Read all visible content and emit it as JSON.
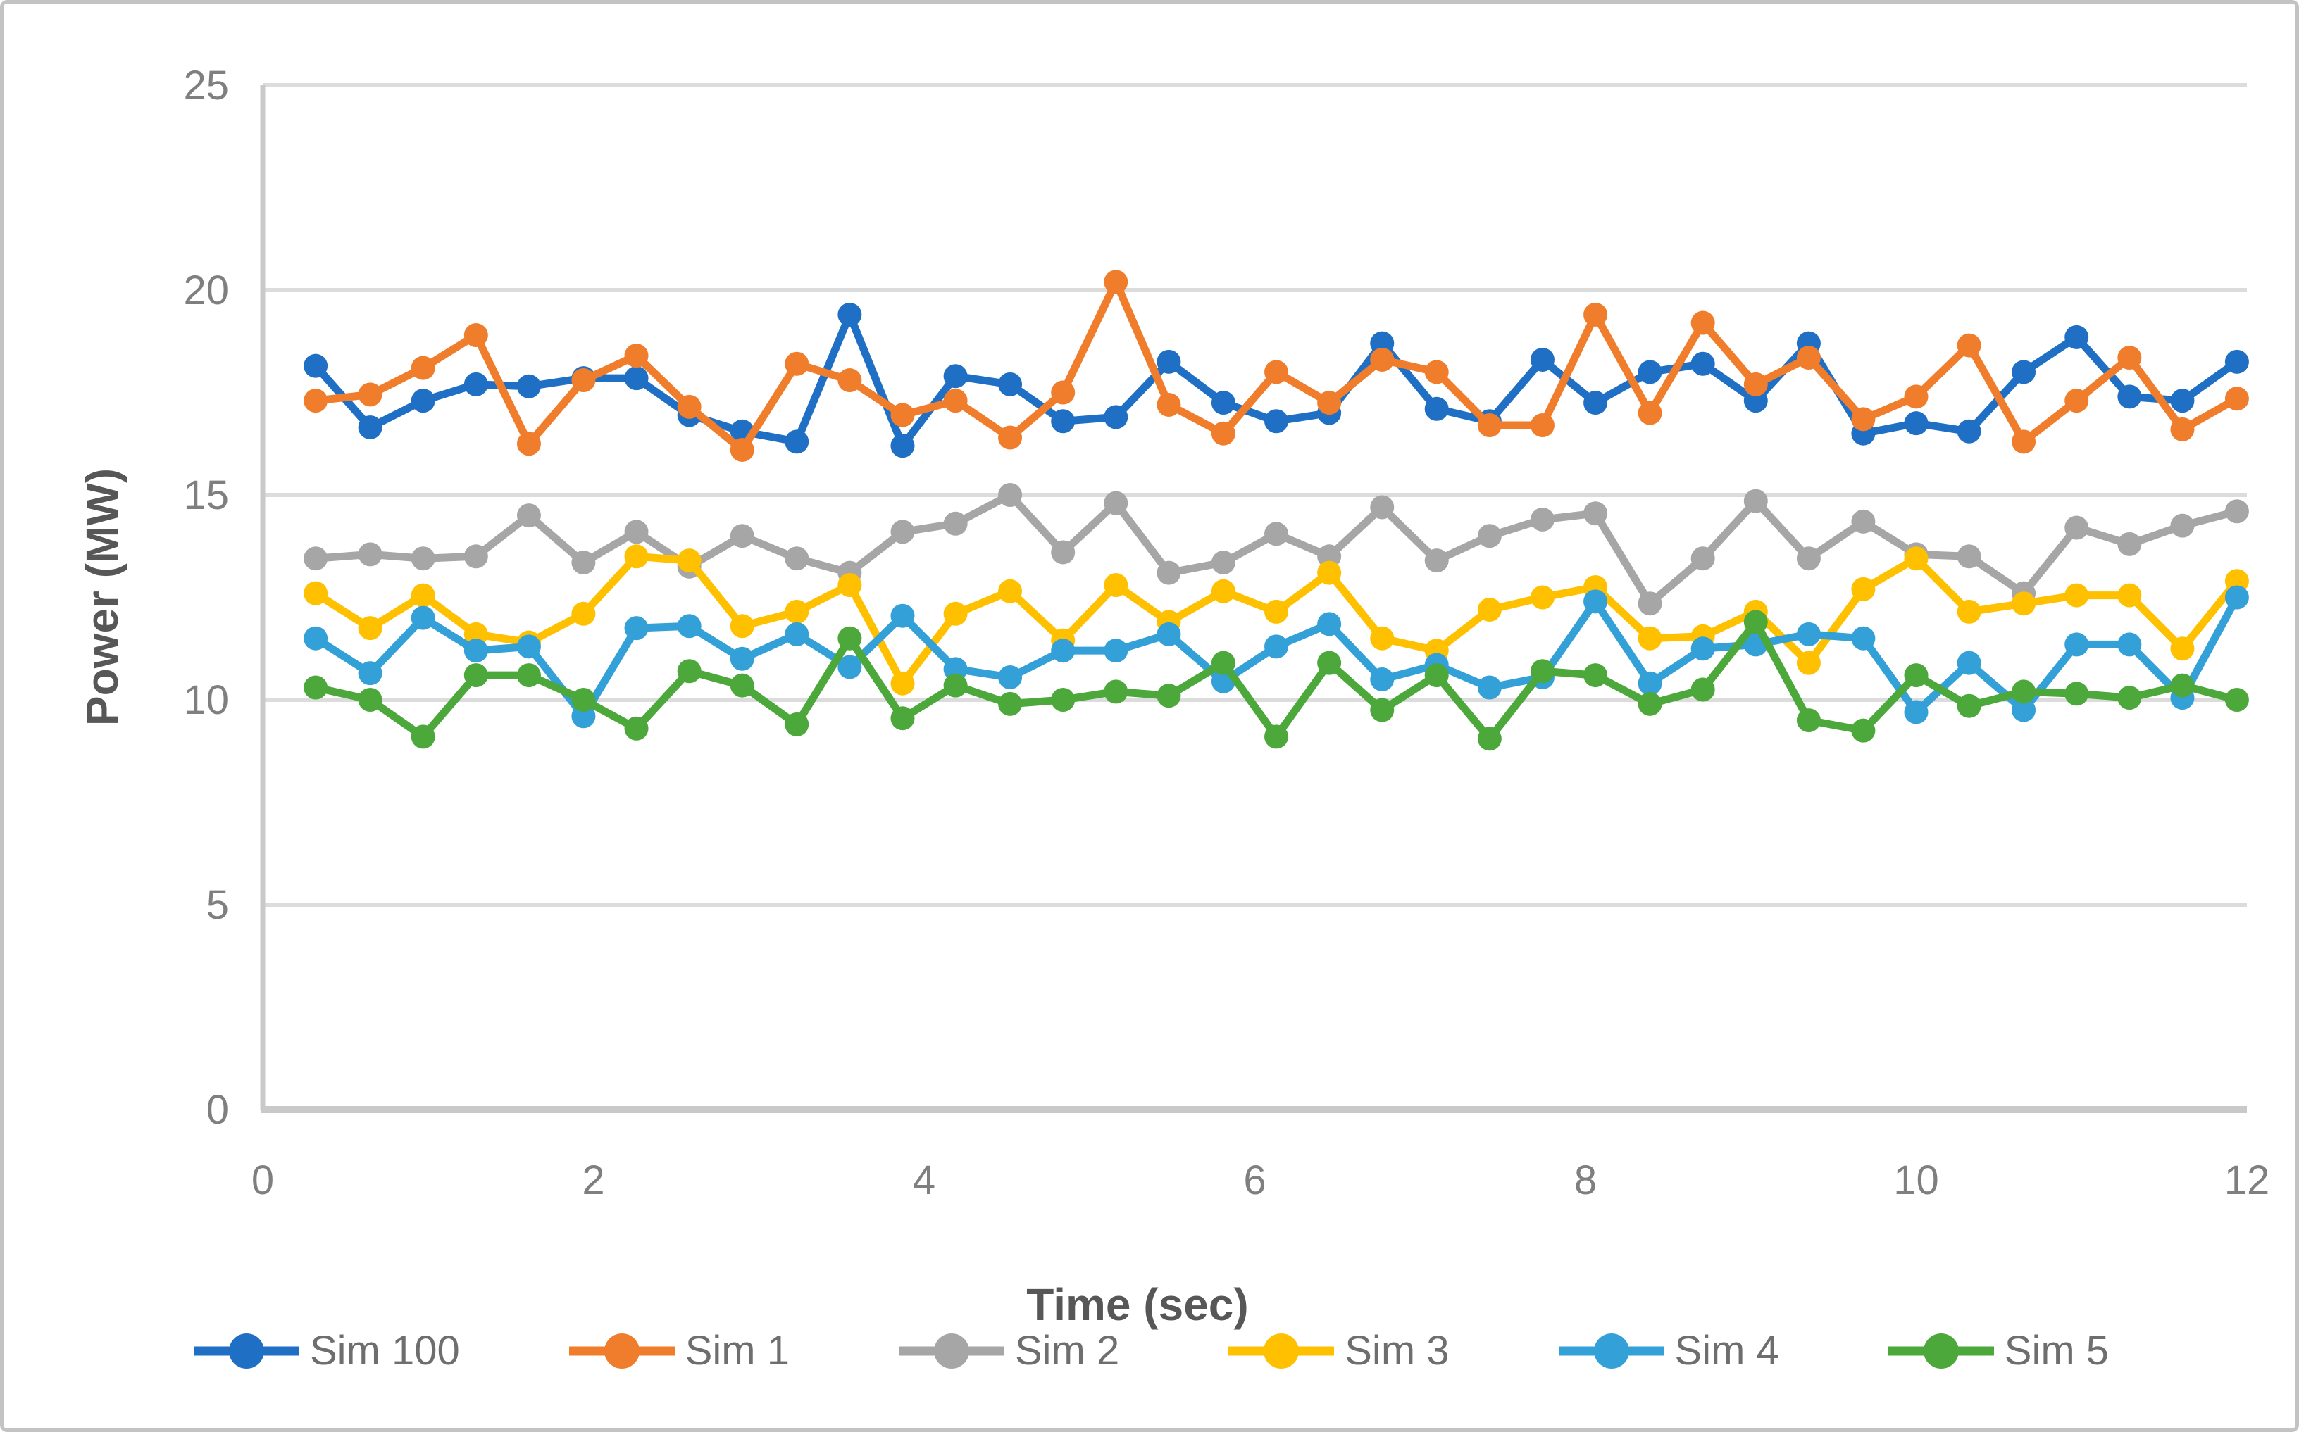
{
  "chart_data": {
    "type": "line",
    "title": "",
    "xlabel": "Time (sec)",
    "ylabel": "Power (MW)",
    "xlim": [
      0,
      12
    ],
    "ylim": [
      0,
      25
    ],
    "x_ticks": [
      0,
      2,
      4,
      6,
      8,
      10,
      12
    ],
    "y_ticks": [
      0,
      5,
      10,
      15,
      20,
      25
    ],
    "grid": "horizontal",
    "legend_position": "bottom",
    "axis_color": "#c9c9c9",
    "gridline_color": "#dcdcdc",
    "tick_label_color": "#7f7f7f",
    "x": [
      0.32,
      0.65,
      0.97,
      1.29,
      1.61,
      1.94,
      2.26,
      2.58,
      2.9,
      3.23,
      3.55,
      3.87,
      4.19,
      4.52,
      4.84,
      5.16,
      5.48,
      5.81,
      6.13,
      6.45,
      6.77,
      7.1,
      7.42,
      7.74,
      8.06,
      8.39,
      8.71,
      9.03,
      9.35,
      9.68,
      10.0,
      10.32,
      10.65,
      10.97,
      11.29,
      11.61,
      11.94
    ],
    "series": [
      {
        "name": "Sim 100",
        "color": "#1f6fc4",
        "values": [
          18.15,
          16.65,
          17.3,
          17.7,
          17.65,
          17.85,
          17.85,
          16.95,
          16.55,
          16.3,
          19.4,
          16.2,
          17.9,
          17.7,
          16.8,
          16.9,
          18.25,
          17.25,
          16.8,
          17.0,
          18.7,
          17.1,
          16.8,
          18.3,
          17.25,
          18.0,
          18.2,
          17.3,
          18.7,
          16.5,
          16.75,
          16.55,
          18.0,
          18.85,
          17.4,
          17.3,
          18.25
        ]
      },
      {
        "name": "Sim 1",
        "color": "#f07d2c",
        "values": [
          17.3,
          17.45,
          18.1,
          18.9,
          16.25,
          17.8,
          18.4,
          17.15,
          16.1,
          18.2,
          17.8,
          16.95,
          17.3,
          16.4,
          17.5,
          20.2,
          17.2,
          16.5,
          18.0,
          17.25,
          18.3,
          18.0,
          16.7,
          16.7,
          19.4,
          17.0,
          19.2,
          17.7,
          18.35,
          16.85,
          17.4,
          18.65,
          16.3,
          17.3,
          18.35,
          16.6,
          17.35
        ]
      },
      {
        "name": "Sim 2",
        "color": "#a6a6a6",
        "values": [
          13.45,
          13.55,
          13.45,
          13.5,
          14.5,
          13.35,
          14.1,
          13.25,
          14.0,
          13.45,
          13.1,
          14.1,
          14.3,
          15.0,
          13.6,
          14.8,
          13.1,
          13.35,
          14.05,
          13.5,
          14.7,
          13.4,
          14.0,
          14.4,
          14.55,
          12.35,
          13.45,
          14.85,
          13.45,
          14.35,
          13.55,
          13.5,
          12.6,
          14.2,
          13.8,
          14.25,
          14.6
        ]
      },
      {
        "name": "Sim 3",
        "color": "#ffc000",
        "values": [
          12.6,
          11.75,
          12.55,
          11.6,
          11.4,
          12.1,
          13.5,
          13.4,
          11.8,
          12.15,
          12.8,
          10.4,
          12.1,
          12.65,
          11.45,
          12.8,
          11.9,
          12.65,
          12.15,
          13.1,
          11.5,
          11.2,
          12.2,
          12.5,
          12.75,
          11.5,
          11.55,
          12.15,
          10.9,
          12.7,
          13.45,
          12.15,
          12.35,
          12.55,
          12.55,
          11.25,
          12.9
        ]
      },
      {
        "name": "Sim 4",
        "color": "#33a0d8",
        "values": [
          11.5,
          10.65,
          12.0,
          11.2,
          11.3,
          9.6,
          11.75,
          11.8,
          11.0,
          11.6,
          10.8,
          12.05,
          10.75,
          10.55,
          11.2,
          11.2,
          11.6,
          10.45,
          11.3,
          11.85,
          10.5,
          10.85,
          10.3,
          10.55,
          12.4,
          10.4,
          11.25,
          11.35,
          11.6,
          11.5,
          9.7,
          10.9,
          9.75,
          11.35,
          11.35,
          10.05,
          12.5
        ]
      },
      {
        "name": "Sim 5",
        "color": "#4da83c",
        "values": [
          10.3,
          10.0,
          9.1,
          10.6,
          10.6,
          10.0,
          9.3,
          10.7,
          10.35,
          9.4,
          11.5,
          9.55,
          10.35,
          9.9,
          10.0,
          10.2,
          10.1,
          10.9,
          9.1,
          10.9,
          9.75,
          10.6,
          9.05,
          10.7,
          10.6,
          9.9,
          10.25,
          11.9,
          9.5,
          9.25,
          10.6,
          9.85,
          10.2,
          10.15,
          10.05,
          10.35,
          10.0
        ]
      }
    ]
  }
}
